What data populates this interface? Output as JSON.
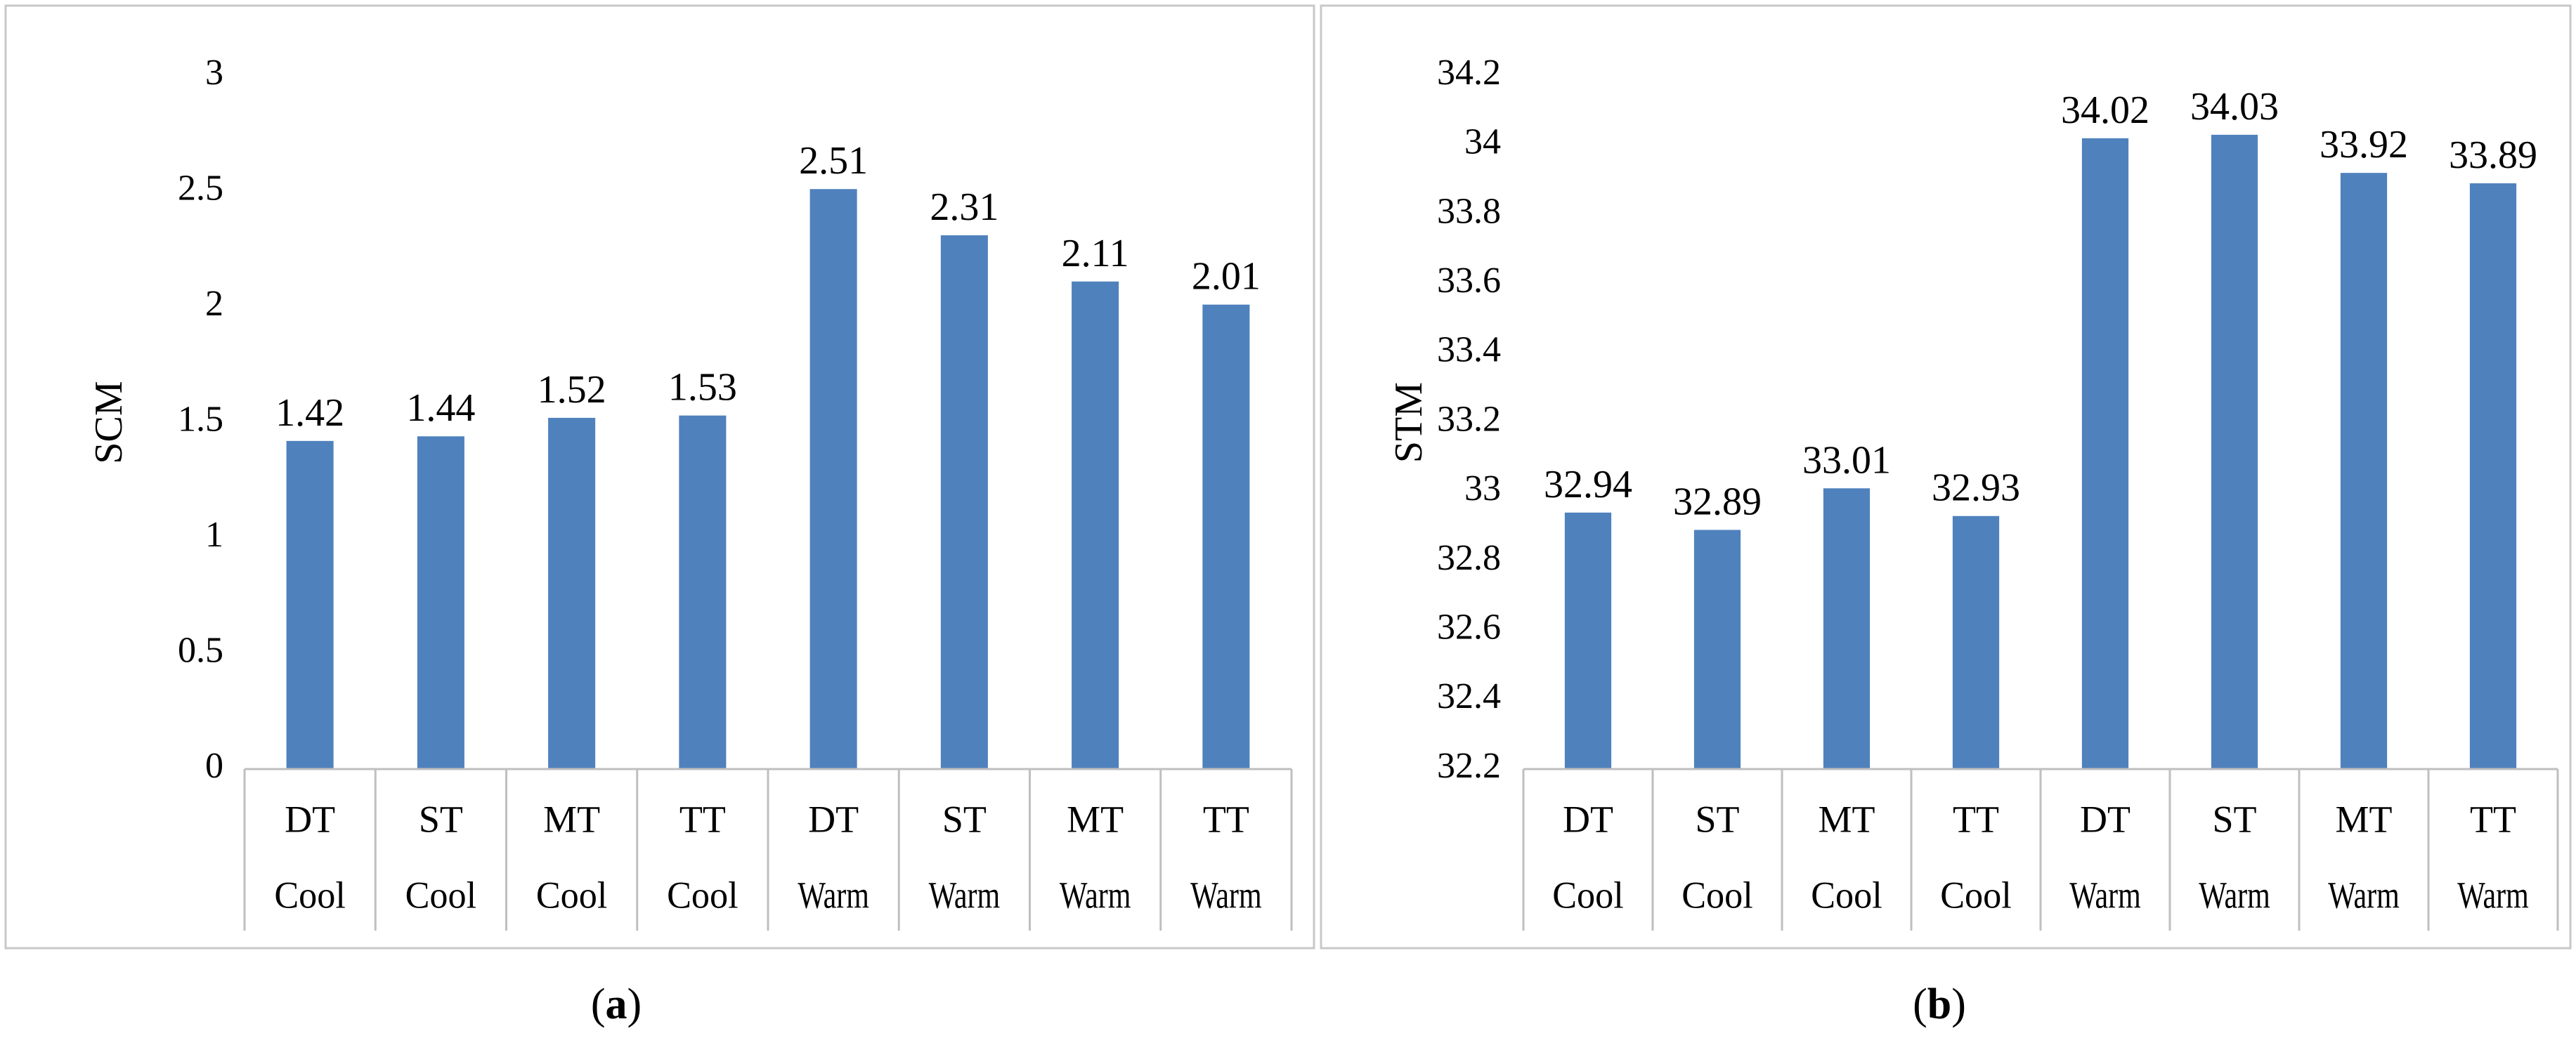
{
  "figure": {
    "colors": {
      "bar": "#4f81bd",
      "axis": "#bfbfbf",
      "frame": "#c8c8c8",
      "text": "#000000"
    },
    "panels": [
      {
        "open": "(",
        "letter": "a",
        "close": ")"
      },
      {
        "open": "(",
        "letter": "b",
        "close": ")"
      }
    ]
  },
  "chart_data": [
    {
      "type": "bar",
      "panel": "a",
      "ylabel": "SCM",
      "xlabel": "",
      "categories": [
        {
          "treatment": "DT",
          "condition": "Cool"
        },
        {
          "treatment": "ST",
          "condition": "Cool"
        },
        {
          "treatment": "MT",
          "condition": "Cool"
        },
        {
          "treatment": "TT",
          "condition": "Cool"
        },
        {
          "treatment": "DT",
          "condition": "Warm"
        },
        {
          "treatment": "ST",
          "condition": "Warm"
        },
        {
          "treatment": "MT",
          "condition": "Warm"
        },
        {
          "treatment": "TT",
          "condition": "Warm"
        }
      ],
      "values": [
        1.42,
        1.44,
        1.52,
        1.53,
        2.51,
        2.31,
        2.11,
        2.01
      ],
      "data_labels": [
        "1.42",
        "1.44",
        "1.52",
        "1.53",
        "2.51",
        "2.31",
        "2.11",
        "2.01"
      ],
      "ylim": [
        0,
        3
      ],
      "yticks": [
        0,
        0.5,
        1,
        1.5,
        2,
        2.5,
        3
      ],
      "ytick_labels": [
        "0",
        "0.5",
        "1",
        "1.5",
        "2",
        "2.5",
        "3"
      ],
      "grid": false,
      "legend": "none"
    },
    {
      "type": "bar",
      "panel": "b",
      "ylabel": "STM",
      "xlabel": "",
      "categories": [
        {
          "treatment": "DT",
          "condition": "Cool"
        },
        {
          "treatment": "ST",
          "condition": "Cool"
        },
        {
          "treatment": "MT",
          "condition": "Cool"
        },
        {
          "treatment": "TT",
          "condition": "Cool"
        },
        {
          "treatment": "DT",
          "condition": "Warm"
        },
        {
          "treatment": "ST",
          "condition": "Warm"
        },
        {
          "treatment": "MT",
          "condition": "Warm"
        },
        {
          "treatment": "TT",
          "condition": "Warm"
        }
      ],
      "values": [
        32.94,
        32.89,
        33.01,
        32.93,
        34.02,
        34.03,
        33.92,
        33.89
      ],
      "data_labels": [
        "32.94",
        "32.89",
        "33.01",
        "32.93",
        "34.02",
        "34.03",
        "33.92",
        "33.89"
      ],
      "ylim": [
        32.2,
        34.2
      ],
      "yticks": [
        32.2,
        32.4,
        32.6,
        32.8,
        33,
        33.2,
        33.4,
        33.6,
        33.8,
        34,
        34.2
      ],
      "ytick_labels": [
        "32.2",
        "32.4",
        "32.6",
        "32.8",
        "33",
        "33.2",
        "33.4",
        "33.6",
        "33.8",
        "34",
        "34.2"
      ],
      "grid": false,
      "legend": "none"
    }
  ]
}
